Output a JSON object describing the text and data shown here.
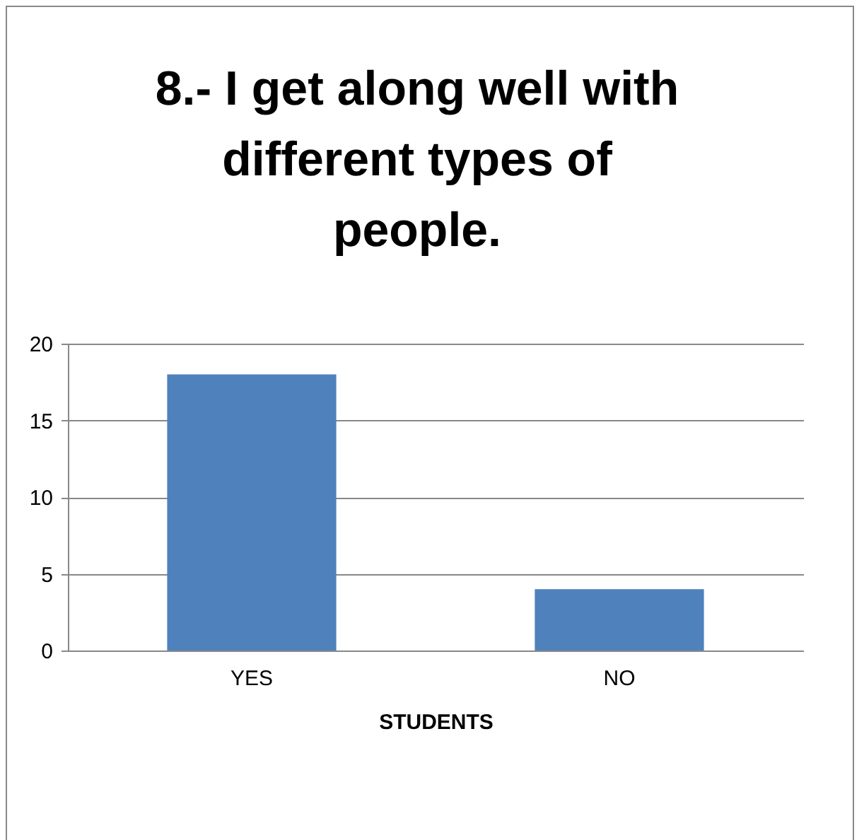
{
  "chart_data": {
    "type": "bar",
    "title": "8.- I get along well with different types of people.",
    "xlabel": "STUDENTS",
    "categories": [
      "YES",
      "NO"
    ],
    "values": [
      18,
      4
    ],
    "color": "#4f81bd",
    "ylim": [
      0,
      20
    ],
    "yticks": [
      0,
      5,
      10,
      15,
      20
    ],
    "grid": "y"
  }
}
